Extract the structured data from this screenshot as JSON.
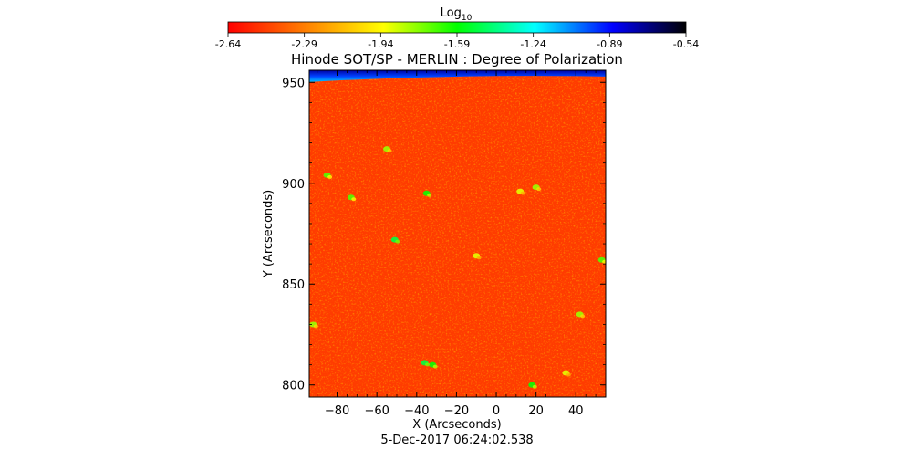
{
  "colorbar": {
    "label": "Log",
    "label_sub": "10",
    "ticks": [
      "-2.64",
      "-2.29",
      "-1.94",
      "-1.59",
      "-1.24",
      "-0.89",
      "-0.54"
    ],
    "range": [
      -2.64,
      -0.54
    ],
    "colormap": [
      "#ff0000",
      "#ff8000",
      "#ffff00",
      "#00ff00",
      "#00ffff",
      "#0000ff",
      "#000000"
    ]
  },
  "chart_data": {
    "type": "heatmap",
    "title": "Hinode SOT/SP - MERLIN : Degree of Polarization",
    "xlabel": "X (Arcseconds)",
    "ylabel": "Y (Arcseconds)",
    "subtitle": "5-Dec-2017 06:24:02.538",
    "xlim": [
      -94,
      55
    ],
    "ylim": [
      794,
      956
    ],
    "x_ticks": [
      -80,
      -60,
      -40,
      -20,
      0,
      20,
      40
    ],
    "y_ticks": [
      800,
      850,
      900,
      950
    ],
    "x_tick_labels": [
      "−80",
      "−60",
      "−40",
      "−20",
      "0",
      "20",
      "40"
    ],
    "y_tick_labels": [
      "800",
      "850",
      "900",
      "950"
    ],
    "limb_y": 952,
    "background_color": "#ff3c00",
    "limb_colors": [
      "#0000a0",
      "#0040ff",
      "#00c0ff"
    ],
    "features": [
      {
        "x": -73,
        "y": 893,
        "level": -1.7
      },
      {
        "x": -55,
        "y": 917,
        "level": -1.8
      },
      {
        "x": -35,
        "y": 895,
        "level": -1.6
      },
      {
        "x": -51,
        "y": 872,
        "level": -1.5
      },
      {
        "x": 12,
        "y": 896,
        "level": -1.9
      },
      {
        "x": 20,
        "y": 898,
        "level": -1.8
      },
      {
        "x": -32,
        "y": 810,
        "level": -1.6
      },
      {
        "x": -36,
        "y": 811,
        "level": -1.5
      },
      {
        "x": 42,
        "y": 835,
        "level": -1.8
      },
      {
        "x": 53,
        "y": 862,
        "level": -1.7
      },
      {
        "x": -92,
        "y": 830,
        "level": -1.8
      },
      {
        "x": -85,
        "y": 904,
        "level": -1.7
      },
      {
        "x": 18,
        "y": 800,
        "level": -1.6
      },
      {
        "x": 35,
        "y": 806,
        "level": -1.9
      },
      {
        "x": -10,
        "y": 864,
        "level": -1.9
      }
    ]
  }
}
